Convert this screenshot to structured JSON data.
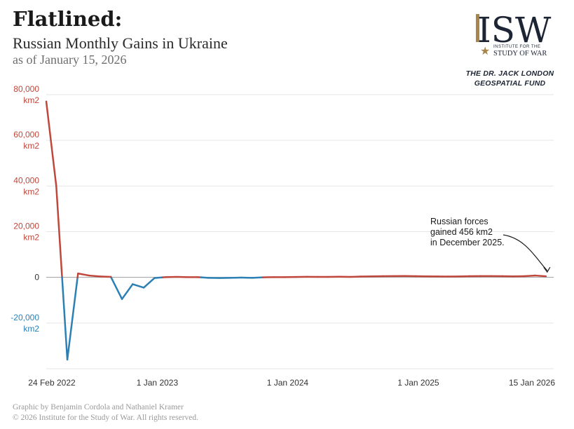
{
  "header": {
    "title": "Flatlined:",
    "subtitle": "Russian Monthly Gains in Ukraine",
    "as_of": "as of January 15, 2026"
  },
  "logo": {
    "mark": "ISW",
    "line1": "INSTITUTE FOR THE",
    "line2": "STUDY OF WAR",
    "fund_line1": "THE DR. JACK LONDON",
    "fund_line2": "GEOSPATIAL FUND"
  },
  "footer": {
    "credit": "Graphic by Benjamin Cordola and Nathaniel Kramer",
    "copyright": "© 2026 Institute for the Study of War. All rights reserved."
  },
  "colors": {
    "positive": "#c0473b",
    "negative": "#2c80b5",
    "grid": "#e6e6e6",
    "axis": "#bdbdbd",
    "logo_navy": "#1d2433",
    "logo_gold": "#a88548"
  },
  "chart_data": {
    "type": "line",
    "title": "",
    "xlabel": "",
    "ylabel": "",
    "ylim": [
      -40000,
      80000
    ],
    "grid": true,
    "y_ticks": [
      {
        "value": 80000,
        "lines": [
          "80,000",
          "km2"
        ]
      },
      {
        "value": 60000,
        "lines": [
          "60,000",
          "km2"
        ]
      },
      {
        "value": 40000,
        "lines": [
          "40,000",
          "km2"
        ]
      },
      {
        "value": 20000,
        "lines": [
          "20,000",
          "km2"
        ]
      },
      {
        "value": 0,
        "lines": [
          "0"
        ]
      },
      {
        "value": -20000,
        "lines": [
          "-20,000",
          "km2"
        ]
      }
    ],
    "x_ticks": [
      {
        "date": "2022-02-24",
        "label": "24 Feb 2022"
      },
      {
        "date": "2023-01-01",
        "label": "1 Jan 2023"
      },
      {
        "date": "2024-01-01",
        "label": "1 Jan 2024"
      },
      {
        "date": "2025-01-01",
        "label": "1 Jan 2025"
      },
      {
        "date": "2026-01-15",
        "label": "15 Jan 2026"
      }
    ],
    "series": [
      {
        "points": [
          [
            "2022-02-24",
            77000
          ],
          [
            "2022-03-24",
            40000
          ],
          [
            "2022-04-24",
            -36000
          ],
          [
            "2022-05-24",
            1700
          ],
          [
            "2022-06-24",
            800
          ],
          [
            "2022-07-24",
            400
          ],
          [
            "2022-08-24",
            200
          ],
          [
            "2022-09-24",
            -9500
          ],
          [
            "2022-10-24",
            -3000
          ],
          [
            "2022-11-24",
            -4500
          ],
          [
            "2022-12-24",
            -300
          ],
          [
            "2023-01-24",
            100
          ],
          [
            "2023-02-24",
            200
          ],
          [
            "2023-03-24",
            100
          ],
          [
            "2023-04-24",
            100
          ],
          [
            "2023-05-24",
            -200
          ],
          [
            "2023-06-24",
            -300
          ],
          [
            "2023-07-24",
            -200
          ],
          [
            "2023-08-24",
            -100
          ],
          [
            "2023-09-24",
            -200
          ],
          [
            "2023-10-24",
            0
          ],
          [
            "2023-11-24",
            100
          ],
          [
            "2023-12-24",
            100
          ],
          [
            "2024-01-24",
            150
          ],
          [
            "2024-02-24",
            250
          ],
          [
            "2024-03-24",
            200
          ],
          [
            "2024-04-24",
            200
          ],
          [
            "2024-05-24",
            300
          ],
          [
            "2024-06-24",
            200
          ],
          [
            "2024-07-24",
            350
          ],
          [
            "2024-08-24",
            450
          ],
          [
            "2024-09-24",
            500
          ],
          [
            "2024-10-24",
            550
          ],
          [
            "2024-11-24",
            600
          ],
          [
            "2024-12-24",
            500
          ],
          [
            "2025-01-24",
            450
          ],
          [
            "2025-02-24",
            400
          ],
          [
            "2025-03-24",
            350
          ],
          [
            "2025-04-24",
            400
          ],
          [
            "2025-05-24",
            500
          ],
          [
            "2025-06-24",
            550
          ],
          [
            "2025-07-24",
            550
          ],
          [
            "2025-08-24",
            500
          ],
          [
            "2025-09-24",
            450
          ],
          [
            "2025-10-24",
            500
          ],
          [
            "2025-11-24",
            800
          ],
          [
            "2025-12-24",
            456
          ]
        ]
      }
    ],
    "annotation": {
      "lines": [
        "Russian forces",
        "gained 456 km2",
        "in December 2025."
      ],
      "target_date": "2025-12-24",
      "target_value": 456
    }
  }
}
